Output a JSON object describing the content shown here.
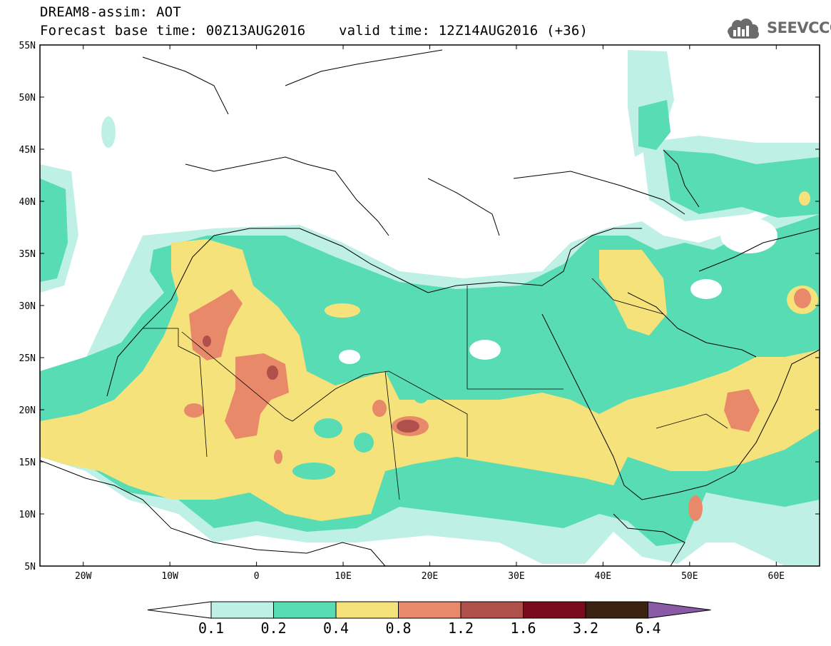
{
  "title": {
    "line1": "DREAM8-assim: AOT",
    "line2": "Forecast base time: 00Z13AUG2016    valid time: 12Z14AUG2016 (+36)"
  },
  "logo": {
    "text": "SEEVCCC",
    "icon": "cloud-icon",
    "color": "#6b6b6b"
  },
  "map": {
    "lon_range": [
      -25,
      65
    ],
    "lat_range": [
      5,
      55
    ],
    "lat_labels": [
      "5N",
      "10N",
      "15N",
      "20N",
      "25N",
      "30N",
      "35N",
      "40N",
      "45N",
      "50N",
      "55N"
    ],
    "lon_labels": [
      "20W",
      "10W",
      "0",
      "10E",
      "20E",
      "30E",
      "40E",
      "50E",
      "60E"
    ]
  },
  "colorbar": {
    "levels": [
      "0.1",
      "0.2",
      "0.4",
      "0.8",
      "1.2",
      "1.6",
      "3.2",
      "6.4"
    ],
    "colors": [
      "#ffffff",
      "#bff0e6",
      "#58dcb4",
      "#f5e27a",
      "#e8896a",
      "#b0504a",
      "#7a0a1e",
      "#3b2210",
      "#8a5aa6"
    ]
  },
  "chart_data": {
    "type": "heatmap",
    "title": "DREAM8-assim: AOT",
    "subtitle": "Forecast base time: 00Z13AUG2016    valid time: 12Z14AUG2016 (+36)",
    "x_range": [
      -25,
      65
    ],
    "y_range": [
      5,
      55
    ],
    "variable": "AOT",
    "levels": [
      0.1,
      0.2,
      0.4,
      0.8,
      1.2,
      1.6,
      3.2,
      6.4
    ],
    "legend": "bottom"
  }
}
